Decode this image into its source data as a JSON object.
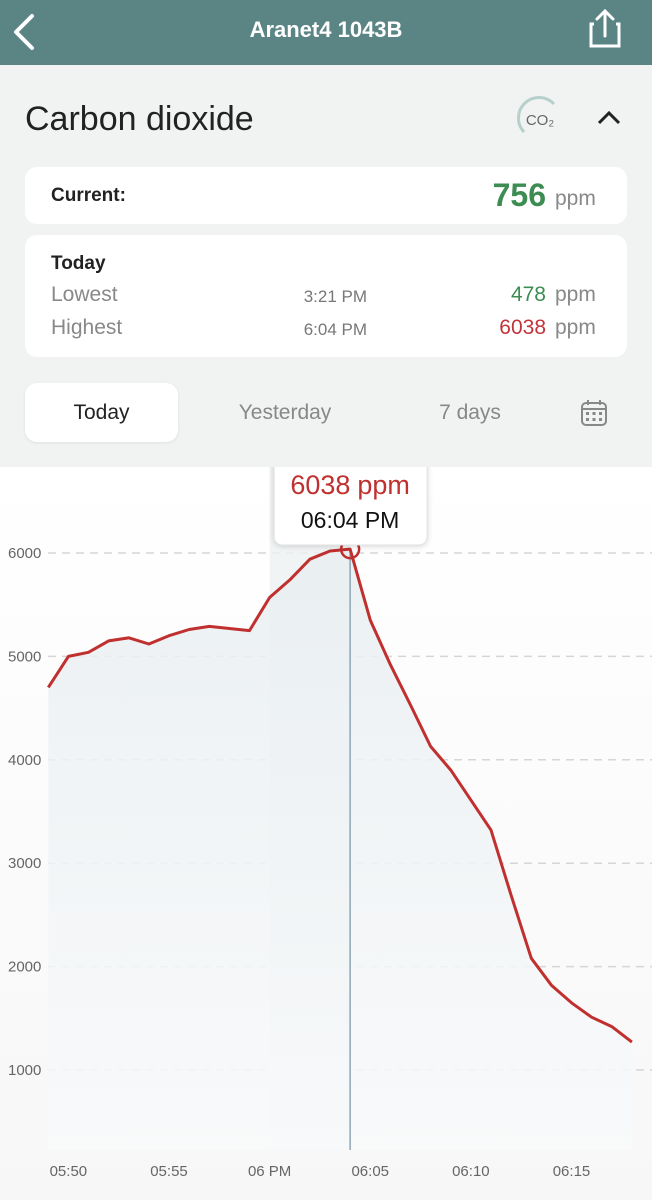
{
  "header": {
    "title": "Aranet4 1043B"
  },
  "section": {
    "title": "Carbon dioxide",
    "icon_text": "CO₂"
  },
  "current": {
    "label": "Current:",
    "value": 756,
    "unit": "ppm"
  },
  "today": {
    "title": "Today",
    "lowest": {
      "label": "Lowest",
      "time": "3:21 PM",
      "value": 478,
      "unit": "ppm"
    },
    "highest": {
      "label": "Highest",
      "time": "6:04 PM",
      "value": 6038,
      "unit": "ppm"
    }
  },
  "tabs": [
    "Today",
    "Yesterday",
    "7 days"
  ],
  "chart_data": {
    "type": "line",
    "x": [
      "05:49",
      "05:50",
      "05:51",
      "05:52",
      "05:53",
      "05:54",
      "05:55",
      "05:56",
      "05:57",
      "05:58",
      "05:59",
      "06:00",
      "06:01",
      "06:02",
      "06:03",
      "06:04",
      "06:05",
      "06:06",
      "06:07",
      "06:08",
      "06:09",
      "06:10",
      "06:11",
      "06:12",
      "06:13",
      "06:14",
      "06:15",
      "06:16",
      "06:17",
      "06:18"
    ],
    "values": [
      4700,
      5000,
      5040,
      5150,
      5180,
      5120,
      5200,
      5260,
      5290,
      5270,
      5250,
      5570,
      5740,
      5940,
      6020,
      6038,
      5350,
      4920,
      4530,
      4130,
      3900,
      3610,
      3320,
      2690,
      2080,
      1820,
      1650,
      1510,
      1420,
      1270
    ],
    "color": "#c0302f",
    "xlim": [
      "05:47",
      "06:19"
    ],
    "xticks": [
      "05:50",
      "05:55",
      {
        "value": "06:00",
        "label": "06 PM"
      },
      "06:05",
      "06:10",
      "06:15"
    ],
    "ylim": [
      226,
      6832
    ],
    "yticks": [
      1000,
      2000,
      3000,
      4000,
      5000,
      6000
    ],
    "grid": true,
    "tooltip": {
      "value": 6038,
      "unit": "ppm",
      "time": "06:04 PM"
    }
  }
}
